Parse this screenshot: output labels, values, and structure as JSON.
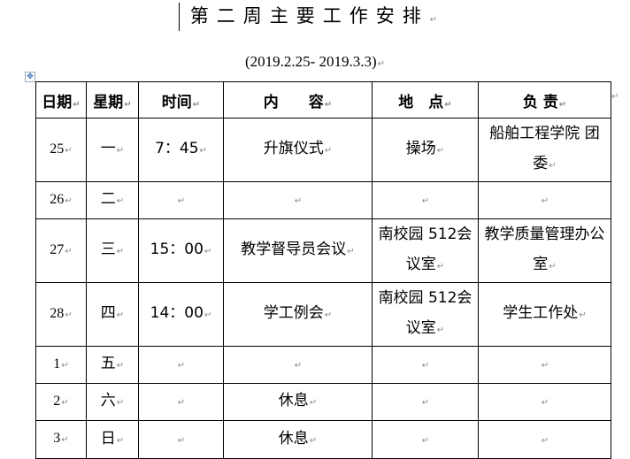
{
  "title": "第二周主要工作安排",
  "subtitle": "(2019.2.25- 2019.3.3)",
  "table": {
    "headers": [
      "日期",
      "星期",
      "时间",
      "内　　容",
      "地　点",
      "负 责"
    ],
    "rows": [
      {
        "date": "25",
        "weekday": "一",
        "time": "7：45",
        "content": "升旗仪式",
        "place": "操场",
        "owner": "船舶工程学院 团　委"
      },
      {
        "date": "26",
        "weekday": "二",
        "time": "",
        "content": "",
        "place": "",
        "owner": ""
      },
      {
        "date": "27",
        "weekday": "三",
        "time": "15：00",
        "content": "教学督导员会议",
        "place": "南校园 512会议室",
        "owner": "教学质量管理办公室"
      },
      {
        "date": "28",
        "weekday": "四",
        "time": "14：00",
        "content": "学工例会",
        "place": "南校园 512会议室",
        "owner": "学生工作处"
      },
      {
        "date": "1",
        "weekday": "五",
        "time": "",
        "content": "",
        "place": "",
        "owner": ""
      },
      {
        "date": "2",
        "weekday": "六",
        "time": "",
        "content": "休息",
        "place": "",
        "owner": ""
      },
      {
        "date": "3",
        "weekday": "日",
        "time": "",
        "content": "休息",
        "place": "",
        "owner": ""
      }
    ]
  }
}
